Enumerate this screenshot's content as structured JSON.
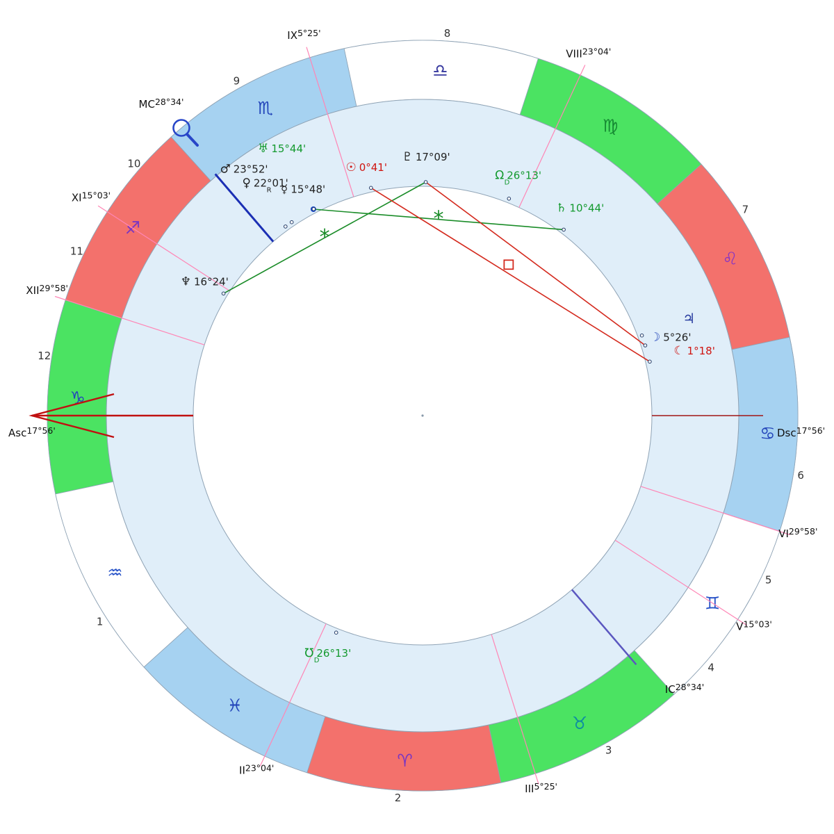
{
  "chart_data": {
    "type": "radial-natal-wheel",
    "ascendant_longitude_deg": 287.933,
    "colors": {
      "fire": "#f3716c",
      "earth": "#4be362",
      "air": "#ffffff",
      "water": "#a6d2f1",
      "planet_band": "#e0eef9",
      "cusp_line": "#ff85b5",
      "axis_red": "#c01010",
      "axis_dark_red": "#a01515",
      "axis_blue": "#1b2fb4",
      "axis_purple": "#5b57c0",
      "aspect_green": "#1a8c28",
      "aspect_red": "#d42a1e",
      "outline": "#8fa3b5"
    },
    "signs": [
      {
        "name": "aries",
        "glyph": "♈",
        "element": "fire",
        "start_deg": 0,
        "glyph_color": "#7a36c2"
      },
      {
        "name": "taurus",
        "glyph": "♉",
        "element": "earth",
        "start_deg": 30,
        "glyph_color": "#0e8fa0"
      },
      {
        "name": "gemini",
        "glyph": "♊",
        "element": "air",
        "start_deg": 60,
        "glyph_color": "#2853c8"
      },
      {
        "name": "cancer",
        "glyph": "♋",
        "element": "water",
        "start_deg": 90,
        "glyph_color": "#2446ba"
      },
      {
        "name": "leo",
        "glyph": "♌",
        "element": "fire",
        "start_deg": 120,
        "glyph_color": "#8a36c2"
      },
      {
        "name": "virgo",
        "glyph": "♍",
        "element": "earth",
        "start_deg": 150,
        "glyph_color": "#168a33"
      },
      {
        "name": "libra",
        "glyph": "♎",
        "element": "air",
        "start_deg": 180,
        "glyph_color": "#35379e"
      },
      {
        "name": "scorpio",
        "glyph": "♏",
        "element": "water",
        "start_deg": 210,
        "glyph_color": "#2446ba"
      },
      {
        "name": "sagittarius",
        "glyph": "♐",
        "element": "fire",
        "start_deg": 240,
        "glyph_color": "#7a36c2"
      },
      {
        "name": "capricorn",
        "glyph": "♑",
        "element": "earth",
        "start_deg": 270,
        "glyph_color": "#2446ba"
      },
      {
        "name": "aquarius",
        "glyph": "♒",
        "element": "air",
        "start_deg": 300,
        "glyph_color": "#2853c8"
      },
      {
        "name": "pisces",
        "glyph": "♓",
        "element": "water",
        "start_deg": 330,
        "glyph_color": "#2446ba"
      }
    ],
    "houses": [
      {
        "num": "1",
        "cusp": "Asc",
        "degree": "17°56'",
        "sign": "capricorn",
        "lon": 287.933,
        "axis": "asc"
      },
      {
        "num": "2",
        "cusp": "II",
        "degree": "23°04'",
        "sign": "pisces",
        "lon": 353.067
      },
      {
        "num": "3",
        "cusp": "III",
        "degree": "5°25'",
        "sign": "taurus",
        "lon": 35.417
      },
      {
        "num": "4",
        "cusp": "IC",
        "degree": "28°34'",
        "sign": "taurus",
        "lon": 58.567,
        "axis": "ic"
      },
      {
        "num": "5",
        "cusp": "V",
        "degree": "15°03'",
        "sign": "gemini",
        "lon": 75.05
      },
      {
        "num": "6",
        "cusp": "VI",
        "degree": "29°58'",
        "sign": "gemini",
        "lon": 89.967
      },
      {
        "num": "7",
        "cusp": "Dsc",
        "degree": "17°56'",
        "sign": "cancer",
        "lon": 107.933,
        "axis": "dsc"
      },
      {
        "num": "8",
        "cusp": "VIII",
        "degree": "23°04'",
        "sign": "virgo",
        "lon": 173.067
      },
      {
        "num": "9",
        "cusp": "IX",
        "degree": "5°25'",
        "sign": "scorpio",
        "lon": 215.417
      },
      {
        "num": "10",
        "cusp": "MC",
        "degree": "28°34'",
        "sign": "scorpio",
        "lon": 238.567,
        "axis": "mc"
      },
      {
        "num": "11",
        "cusp": "XI",
        "degree": "15°03'",
        "sign": "sagittarius",
        "lon": 255.05
      },
      {
        "num": "12",
        "cusp": "XII",
        "degree": "29°58'",
        "sign": "sagittarius",
        "lon": 269.967
      }
    ],
    "planets": [
      {
        "name": "sun",
        "glyph": "☉",
        "degree": "0°41'",
        "sign": "scorpio",
        "lon": 210.683,
        "color": "#cf1410",
        "label_r": 366
      },
      {
        "name": "moon",
        "glyph": "☽",
        "degree": "5°26'",
        "sign": "leo",
        "lon": 125.433,
        "color": "#222222",
        "glyph_color": "#2446ba",
        "label_r": 374
      },
      {
        "name": "mercury",
        "glyph": "☿",
        "degree": "15°48'",
        "sign": "scorpio",
        "lon": 225.8,
        "color": "#222222",
        "label_r": 368,
        "dot": "filled"
      },
      {
        "name": "venus",
        "glyph": "♀",
        "degree": "22°01'",
        "sign": "scorpio",
        "lon": 232.017,
        "marker": "R",
        "color": "#222222",
        "label_r": 404
      },
      {
        "name": "mars",
        "glyph": "♂",
        "degree": "23°52'",
        "sign": "scorpio",
        "lon": 233.867,
        "color": "#222222",
        "label_r": 438
      },
      {
        "name": "jupiter",
        "glyph": "♃",
        "degree": "",
        "sign": "leo",
        "lon": 128.0,
        "color": "#23379d",
        "label_r": 408
      },
      {
        "name": "saturn",
        "glyph": "♄",
        "degree": "10°44'",
        "sign": "virgo",
        "lon": 160.733,
        "color": "#13992e",
        "label_r": 375
      },
      {
        "name": "uranus",
        "glyph": "♅",
        "degree": "15°44'",
        "sign": "scorpio",
        "lon": 225.733,
        "color": "#13992e",
        "label_r": 434
      },
      {
        "name": "neptune",
        "glyph": "♆",
        "degree": "16°24'",
        "sign": "sagittarius",
        "lon": 256.4,
        "color": "#222222",
        "label_r": 368
      },
      {
        "name": "pluto",
        "glyph": "♇",
        "degree": "17°09'",
        "sign": "libra",
        "lon": 197.15,
        "color": "#222222",
        "label_r": 372
      },
      {
        "name": "north-node",
        "glyph": "Ω",
        "degree": "26°13'",
        "sign": "virgo",
        "lon": 176.217,
        "marker": "D",
        "color": "#13992e",
        "label_r": 372
      },
      {
        "name": "south-node",
        "glyph": "℧",
        "degree": "26°13'",
        "sign": "pisces",
        "lon": 356.217,
        "marker": "D",
        "color": "#13992e",
        "label_r": 368
      },
      {
        "name": "lilith",
        "glyph": "☾",
        "degree": "1°18'",
        "sign": "leo",
        "lon": 121.3,
        "color": "#cf1410",
        "label_r": 402
      }
    ],
    "aspects": [
      {
        "between": [
          "mercury",
          "saturn"
        ],
        "aspect": "sextile",
        "color": "#1a8c28",
        "symbol": "*"
      },
      {
        "between": [
          "neptune",
          "pluto"
        ],
        "aspect": "sextile",
        "color": "#1a8c28",
        "symbol": "*"
      },
      {
        "between": [
          "sun",
          "lilith"
        ],
        "aspect": "square",
        "color": "#d42a1e",
        "symbol": "square"
      },
      {
        "between": [
          "pluto",
          "moon"
        ],
        "aspect": "",
        "color": "#d42a1e"
      }
    ]
  }
}
